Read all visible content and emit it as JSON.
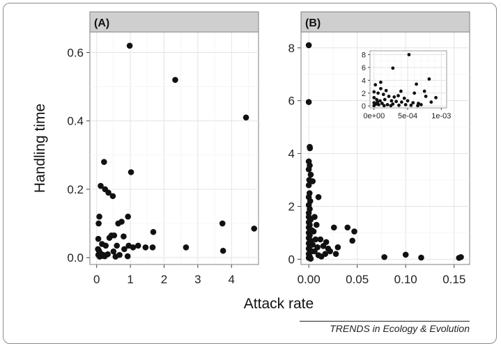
{
  "xlabel": "Attack rate",
  "ylabel": "Handling time",
  "credit": "TRENDS in Ecology & Evolution",
  "chart_data": [
    {
      "type": "scatter",
      "panel_label": "(A)",
      "xlabel": "Attack rate",
      "ylabel": "Handling time",
      "xlim": [
        -0.2,
        4.8
      ],
      "ylim": [
        -0.02,
        0.66
      ],
      "xticks": [
        0,
        1,
        2,
        3,
        4
      ],
      "xtick_labels": [
        "0",
        "1",
        "2",
        "3",
        "4"
      ],
      "yticks": [
        0,
        0.2,
        0.4,
        0.6
      ],
      "ytick_labels": [
        "0.0",
        "0.2",
        "0.4",
        "0.6"
      ],
      "grid": true,
      "points": [
        {
          "x": 0.98,
          "y": 0.62
        },
        {
          "x": 2.33,
          "y": 0.52
        },
        {
          "x": 4.43,
          "y": 0.41
        },
        {
          "x": 0.22,
          "y": 0.28
        },
        {
          "x": 1.02,
          "y": 0.25
        },
        {
          "x": 0.12,
          "y": 0.21
        },
        {
          "x": 0.25,
          "y": 0.2
        },
        {
          "x": 0.35,
          "y": 0.19
        },
        {
          "x": 0.48,
          "y": 0.18
        },
        {
          "x": 0.08,
          "y": 0.12
        },
        {
          "x": 0.93,
          "y": 0.12
        },
        {
          "x": 0.06,
          "y": 0.1
        },
        {
          "x": 0.64,
          "y": 0.1
        },
        {
          "x": 0.74,
          "y": 0.105
        },
        {
          "x": 3.73,
          "y": 0.1
        },
        {
          "x": 4.67,
          "y": 0.085
        },
        {
          "x": 1.68,
          "y": 0.075
        },
        {
          "x": 0.44,
          "y": 0.065
        },
        {
          "x": 0.52,
          "y": 0.065
        },
        {
          "x": 0.8,
          "y": 0.062
        },
        {
          "x": 0.38,
          "y": 0.058
        },
        {
          "x": 0.05,
          "y": 0.055
        },
        {
          "x": 0.16,
          "y": 0.04
        },
        {
          "x": 0.6,
          "y": 0.035
        },
        {
          "x": 0.27,
          "y": 0.035
        },
        {
          "x": 0.95,
          "y": 0.035
        },
        {
          "x": 1.08,
          "y": 0.03
        },
        {
          "x": 1.23,
          "y": 0.035
        },
        {
          "x": 1.45,
          "y": 0.03
        },
        {
          "x": 1.66,
          "y": 0.03
        },
        {
          "x": 2.65,
          "y": 0.03
        },
        {
          "x": 0.82,
          "y": 0.025
        },
        {
          "x": 0.07,
          "y": 0.02
        },
        {
          "x": 0.5,
          "y": 0.018
        },
        {
          "x": 0.12,
          "y": 0.012
        },
        {
          "x": 0.05,
          "y": 0.008
        },
        {
          "x": 0.2,
          "y": 0.008
        },
        {
          "x": 0.33,
          "y": 0.01
        },
        {
          "x": 0.68,
          "y": 0.008
        },
        {
          "x": 3.75,
          "y": 0.02
        },
        {
          "x": 0.09,
          "y": 0.003
        },
        {
          "x": 0.15,
          "y": 0.005
        },
        {
          "x": 0.24,
          "y": 0.004
        },
        {
          "x": 0.92,
          "y": 0.004
        },
        {
          "x": 0.56,
          "y": 0.003
        },
        {
          "x": 0.04,
          "y": 0.025
        }
      ]
    },
    {
      "type": "scatter",
      "panel_label": "(B)",
      "xlabel": "Attack rate",
      "ylabel": "Handling time",
      "xlim": [
        -0.008,
        0.166
      ],
      "ylim": [
        -0.2,
        8.6
      ],
      "xticks": [
        0,
        0.05,
        0.1,
        0.15
      ],
      "xtick_labels": [
        "0.00",
        "0.05",
        "0.10",
        "0.15"
      ],
      "yticks": [
        0,
        2,
        4,
        6,
        8
      ],
      "ytick_labels": [
        "0",
        "2",
        "4",
        "6",
        "8"
      ],
      "grid": true,
      "points": [
        {
          "x": 0.0,
          "y": 8.1
        },
        {
          "x": 0.0,
          "y": 5.95
        },
        {
          "x": 0.001,
          "y": 4.25
        },
        {
          "x": 0.0012,
          "y": 4.2
        },
        {
          "x": 0.0,
          "y": 3.7
        },
        {
          "x": 0.001,
          "y": 3.55
        },
        {
          "x": 0.0,
          "y": 3.4
        },
        {
          "x": 0.002,
          "y": 3.2
        },
        {
          "x": 0.0005,
          "y": 3.0
        },
        {
          "x": 0.004,
          "y": 2.95
        },
        {
          "x": 0.0,
          "y": 2.8
        },
        {
          "x": 0.0008,
          "y": 2.5
        },
        {
          "x": 0.0,
          "y": 2.35
        },
        {
          "x": 0.0015,
          "y": 2.2
        },
        {
          "x": 0.0,
          "y": 2.05
        },
        {
          "x": 0.001,
          "y": 1.9
        },
        {
          "x": 0.0,
          "y": 1.75
        },
        {
          "x": 0.0,
          "y": 1.6
        },
        {
          "x": 0.002,
          "y": 1.5
        },
        {
          "x": 0.0,
          "y": 1.4
        },
        {
          "x": 0.001,
          "y": 1.3
        },
        {
          "x": 0.0,
          "y": 1.2
        },
        {
          "x": 0.003,
          "y": 1.1
        },
        {
          "x": 0.0,
          "y": 1.0
        },
        {
          "x": 0.001,
          "y": 0.9
        },
        {
          "x": 0.0,
          "y": 0.8
        },
        {
          "x": 0.002,
          "y": 0.7
        },
        {
          "x": 0.0,
          "y": 0.6
        },
        {
          "x": 0.001,
          "y": 0.5
        },
        {
          "x": 0.0,
          "y": 0.4
        },
        {
          "x": 0.003,
          "y": 0.3
        },
        {
          "x": 0.0,
          "y": 0.2
        },
        {
          "x": 0.001,
          "y": 0.1
        },
        {
          "x": 0.0,
          "y": 0.05
        },
        {
          "x": 0.002,
          "y": 0.02
        },
        {
          "x": 0.01,
          "y": 2.35
        },
        {
          "x": 0.006,
          "y": 1.6
        },
        {
          "x": 0.008,
          "y": 1.3
        },
        {
          "x": 0.005,
          "y": 1.05
        },
        {
          "x": 0.007,
          "y": 0.75
        },
        {
          "x": 0.004,
          "y": 0.55
        },
        {
          "x": 0.009,
          "y": 0.45
        },
        {
          "x": 0.012,
          "y": 0.75
        },
        {
          "x": 0.015,
          "y": 0.5
        },
        {
          "x": 0.018,
          "y": 0.65
        },
        {
          "x": 0.02,
          "y": 0.4
        },
        {
          "x": 0.022,
          "y": 0.3
        },
        {
          "x": 0.017,
          "y": 0.2
        },
        {
          "x": 0.026,
          "y": 1.2
        },
        {
          "x": 0.03,
          "y": 0.45
        },
        {
          "x": 0.028,
          "y": 0.2
        },
        {
          "x": 0.04,
          "y": 1.2
        },
        {
          "x": 0.047,
          "y": 1.05
        },
        {
          "x": 0.045,
          "y": 0.7
        },
        {
          "x": 0.078,
          "y": 0.08
        },
        {
          "x": 0.1,
          "y": 0.17
        },
        {
          "x": 0.116,
          "y": 0.06
        },
        {
          "x": 0.155,
          "y": 0.05
        },
        {
          "x": 0.157,
          "y": 0.08
        },
        {
          "x": 0.01,
          "y": 0.15
        },
        {
          "x": 0.013,
          "y": 0.1
        },
        {
          "x": 0.006,
          "y": 0.3
        }
      ],
      "inset": {
        "type": "scatter",
        "xlim": [
          -6e-05,
          0.00108
        ],
        "ylim": [
          -0.3,
          8.6
        ],
        "xticks": [
          0,
          0.0005,
          0.001
        ],
        "xtick_labels": [
          "0e+00",
          "5e-04",
          "1e-03"
        ],
        "yticks": [
          0,
          2,
          4,
          6,
          8
        ],
        "ytick_labels": [
          "0",
          "2",
          "4",
          "6",
          "8"
        ],
        "grid": true,
        "points": [
          {
            "x": 0.00052,
            "y": 8.0
          },
          {
            "x": 0.00028,
            "y": 5.9
          },
          {
            "x": 0.00082,
            "y": 4.2
          },
          {
            "x": 0.0001,
            "y": 3.7
          },
          {
            "x": 2e-05,
            "y": 3.3
          },
          {
            "x": 0.00063,
            "y": 3.4
          },
          {
            "x": 0.00075,
            "y": 2.3
          },
          {
            "x": 0.0001,
            "y": 2.7
          },
          {
            "x": 0.00018,
            "y": 2.4
          },
          {
            "x": 0.0004,
            "y": 2.3
          },
          {
            "x": 0.0006,
            "y": 2.0
          },
          {
            "x": 0.0,
            "y": 2.2
          },
          {
            "x": 6e-05,
            "y": 2.0
          },
          {
            "x": 0.00014,
            "y": 1.8
          },
          {
            "x": 0.00022,
            "y": 1.5
          },
          {
            "x": 0.0003,
            "y": 1.4
          },
          {
            "x": 0.00036,
            "y": 1.6
          },
          {
            "x": 0.00045,
            "y": 1.2
          },
          {
            "x": 0.00092,
            "y": 1.3
          },
          {
            "x": 0.00077,
            "y": 1.5
          },
          {
            "x": 0.0,
            "y": 1.3
          },
          {
            "x": 4e-05,
            "y": 1.0
          },
          {
            "x": 9e-05,
            "y": 0.8
          },
          {
            "x": 0.00016,
            "y": 1.0
          },
          {
            "x": 0.00026,
            "y": 0.8
          },
          {
            "x": 0.00033,
            "y": 0.7
          },
          {
            "x": 0.00041,
            "y": 0.6
          },
          {
            "x": 0.0005,
            "y": 0.8
          },
          {
            "x": 0.00058,
            "y": 0.5
          },
          {
            "x": 0.00066,
            "y": 0.4
          },
          {
            "x": 0.00085,
            "y": 0.6
          },
          {
            "x": 0.0,
            "y": 0.5
          },
          {
            "x": 3e-05,
            "y": 0.3
          },
          {
            "x": 7e-05,
            "y": 0.2
          },
          {
            "x": 0.00012,
            "y": 0.4
          },
          {
            "x": 0.0002,
            "y": 0.2
          },
          {
            "x": 0.00028,
            "y": 0.3
          },
          {
            "x": 0.00037,
            "y": 0.1
          },
          {
            "x": 0.00047,
            "y": 0.2
          },
          {
            "x": 0.00055,
            "y": 0.1
          },
          {
            "x": 0.0007,
            "y": 0.2
          },
          {
            "x": 0.0,
            "y": 0.05
          },
          {
            "x": 0.00015,
            "y": 0.05
          },
          {
            "x": 0.00025,
            "y": 0.05
          },
          {
            "x": 0.00065,
            "y": 0.05
          },
          {
            "x": 5e-05,
            "y": 0.6
          }
        ]
      }
    }
  ]
}
